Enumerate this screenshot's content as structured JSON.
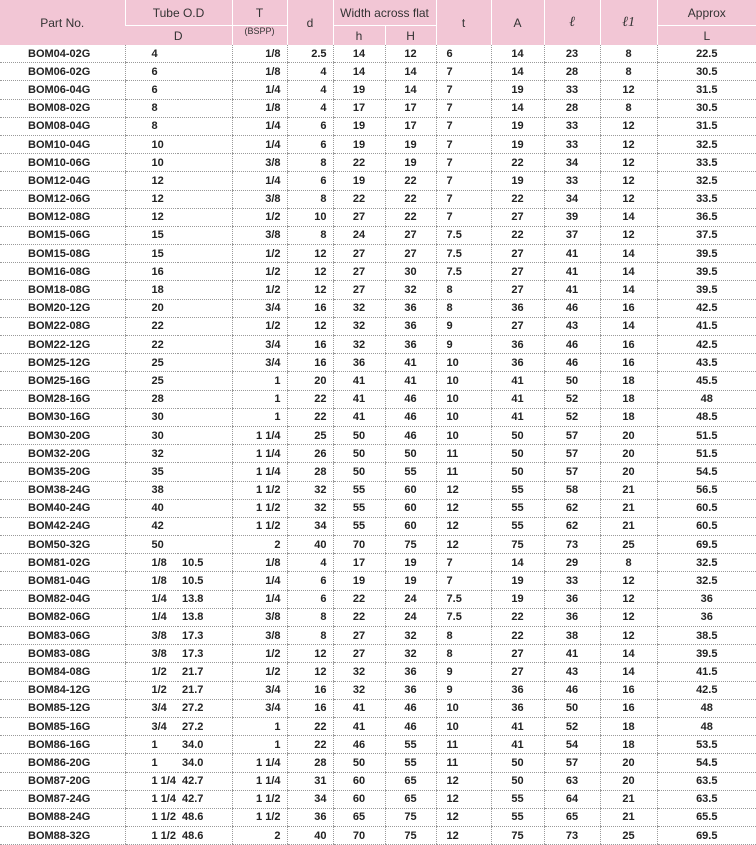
{
  "headers": {
    "part_no": "Part No.",
    "tube_od": "Tube O.D",
    "tube_od_sub": "D",
    "t": "T",
    "t_sub": "(BSPP)",
    "d": "d",
    "waf": "Width across flat",
    "h": "h",
    "H": "H",
    "tt": "t",
    "A": "A",
    "l": "ℓ",
    "l1": "ℓ1",
    "approx": "Approx",
    "L": "L"
  },
  "rows": [
    {
      "part": "BOM04-02G",
      "d1": "4",
      "d2": "",
      "T": "1/8",
      "d": "2.5",
      "h": "14",
      "H": "12",
      "t": "6",
      "A": "14",
      "l": "23",
      "l1": "8",
      "L": "22.5"
    },
    {
      "part": "BOM06-02G",
      "d1": "6",
      "d2": "",
      "T": "1/8",
      "d": "4",
      "h": "14",
      "H": "14",
      "t": "7",
      "A": "14",
      "l": "28",
      "l1": "8",
      "L": "30.5"
    },
    {
      "part": "BOM06-04G",
      "d1": "6",
      "d2": "",
      "T": "1/4",
      "d": "4",
      "h": "19",
      "H": "14",
      "t": "7",
      "A": "19",
      "l": "33",
      "l1": "12",
      "L": "31.5"
    },
    {
      "part": "BOM08-02G",
      "d1": "8",
      "d2": "",
      "T": "1/8",
      "d": "4",
      "h": "17",
      "H": "17",
      "t": "7",
      "A": "14",
      "l": "28",
      "l1": "8",
      "L": "30.5"
    },
    {
      "part": "BOM08-04G",
      "d1": "8",
      "d2": "",
      "T": "1/4",
      "d": "6",
      "h": "19",
      "H": "17",
      "t": "7",
      "A": "19",
      "l": "33",
      "l1": "12",
      "L": "31.5"
    },
    {
      "part": "BOM10-04G",
      "d1": "10",
      "d2": "",
      "T": "1/4",
      "d": "6",
      "h": "19",
      "H": "19",
      "t": "7",
      "A": "19",
      "l": "33",
      "l1": "12",
      "L": "32.5"
    },
    {
      "part": "BOM10-06G",
      "d1": "10",
      "d2": "",
      "T": "3/8",
      "d": "8",
      "h": "22",
      "H": "19",
      "t": "7",
      "A": "22",
      "l": "34",
      "l1": "12",
      "L": "33.5"
    },
    {
      "part": "BOM12-04G",
      "d1": "12",
      "d2": "",
      "T": "1/4",
      "d": "6",
      "h": "19",
      "H": "22",
      "t": "7",
      "A": "19",
      "l": "33",
      "l1": "12",
      "L": "32.5"
    },
    {
      "part": "BOM12-06G",
      "d1": "12",
      "d2": "",
      "T": "3/8",
      "d": "8",
      "h": "22",
      "H": "22",
      "t": "7",
      "A": "22",
      "l": "34",
      "l1": "12",
      "L": "33.5"
    },
    {
      "part": "BOM12-08G",
      "d1": "12",
      "d2": "",
      "T": "1/2",
      "d": "10",
      "h": "27",
      "H": "22",
      "t": "7",
      "A": "27",
      "l": "39",
      "l1": "14",
      "L": "36.5"
    },
    {
      "part": "BOM15-06G",
      "d1": "15",
      "d2": "",
      "T": "3/8",
      "d": "8",
      "h": "24",
      "H": "27",
      "t": "7.5",
      "A": "22",
      "l": "37",
      "l1": "12",
      "L": "37.5"
    },
    {
      "part": "BOM15-08G",
      "d1": "15",
      "d2": "",
      "T": "1/2",
      "d": "12",
      "h": "27",
      "H": "27",
      "t": "7.5",
      "A": "27",
      "l": "41",
      "l1": "14",
      "L": "39.5"
    },
    {
      "part": "BOM16-08G",
      "d1": "16",
      "d2": "",
      "T": "1/2",
      "d": "12",
      "h": "27",
      "H": "30",
      "t": "7.5",
      "A": "27",
      "l": "41",
      "l1": "14",
      "L": "39.5"
    },
    {
      "part": "BOM18-08G",
      "d1": "18",
      "d2": "",
      "T": "1/2",
      "d": "12",
      "h": "27",
      "H": "32",
      "t": "8",
      "A": "27",
      "l": "41",
      "l1": "14",
      "L": "39.5"
    },
    {
      "part": "BOM20-12G",
      "d1": "20",
      "d2": "",
      "T": "3/4",
      "d": "16",
      "h": "32",
      "H": "36",
      "t": "8",
      "A": "36",
      "l": "46",
      "l1": "16",
      "L": "42.5"
    },
    {
      "part": "BOM22-08G",
      "d1": "22",
      "d2": "",
      "T": "1/2",
      "d": "12",
      "h": "32",
      "H": "36",
      "t": "9",
      "A": "27",
      "l": "43",
      "l1": "14",
      "L": "41.5"
    },
    {
      "part": "BOM22-12G",
      "d1": "22",
      "d2": "",
      "T": "3/4",
      "d": "16",
      "h": "32",
      "H": "36",
      "t": "9",
      "A": "36",
      "l": "46",
      "l1": "16",
      "L": "42.5"
    },
    {
      "part": "BOM25-12G",
      "d1": "25",
      "d2": "",
      "T": "3/4",
      "d": "16",
      "h": "36",
      "H": "41",
      "t": "10",
      "A": "36",
      "l": "46",
      "l1": "16",
      "L": "43.5"
    },
    {
      "part": "BOM25-16G",
      "d1": "25",
      "d2": "",
      "T": "1",
      "d": "20",
      "h": "41",
      "H": "41",
      "t": "10",
      "A": "41",
      "l": "50",
      "l1": "18",
      "L": "45.5"
    },
    {
      "part": "BOM28-16G",
      "d1": "28",
      "d2": "",
      "T": "1",
      "d": "22",
      "h": "41",
      "H": "46",
      "t": "10",
      "A": "41",
      "l": "52",
      "l1": "18",
      "L": "48"
    },
    {
      "part": "BOM30-16G",
      "d1": "30",
      "d2": "",
      "T": "1",
      "d": "22",
      "h": "41",
      "H": "46",
      "t": "10",
      "A": "41",
      "l": "52",
      "l1": "18",
      "L": "48.5"
    },
    {
      "part": "BOM30-20G",
      "d1": "30",
      "d2": "",
      "T": "1 1/4",
      "d": "25",
      "h": "50",
      "H": "46",
      "t": "10",
      "A": "50",
      "l": "57",
      "l1": "20",
      "L": "51.5"
    },
    {
      "part": "BOM32-20G",
      "d1": "32",
      "d2": "",
      "T": "1 1/4",
      "d": "26",
      "h": "50",
      "H": "50",
      "t": "11",
      "A": "50",
      "l": "57",
      "l1": "20",
      "L": "51.5"
    },
    {
      "part": "BOM35-20G",
      "d1": "35",
      "d2": "",
      "T": "1 1/4",
      "d": "28",
      "h": "50",
      "H": "55",
      "t": "11",
      "A": "50",
      "l": "57",
      "l1": "20",
      "L": "54.5"
    },
    {
      "part": "BOM38-24G",
      "d1": "38",
      "d2": "",
      "T": "1 1/2",
      "d": "32",
      "h": "55",
      "H": "60",
      "t": "12",
      "A": "55",
      "l": "58",
      "l1": "21",
      "L": "56.5"
    },
    {
      "part": "BOM40-24G",
      "d1": "40",
      "d2": "",
      "T": "1 1/2",
      "d": "32",
      "h": "55",
      "H": "60",
      "t": "12",
      "A": "55",
      "l": "62",
      "l1": "21",
      "L": "60.5"
    },
    {
      "part": "BOM42-24G",
      "d1": "42",
      "d2": "",
      "T": "1 1/2",
      "d": "34",
      "h": "55",
      "H": "60",
      "t": "12",
      "A": "55",
      "l": "62",
      "l1": "21",
      "L": "60.5"
    },
    {
      "part": "BOM50-32G",
      "d1": "50",
      "d2": "",
      "T": "2",
      "d": "40",
      "h": "70",
      "H": "75",
      "t": "12",
      "A": "75",
      "l": "73",
      "l1": "25",
      "L": "69.5"
    },
    {
      "part": "BOM81-02G",
      "d1": "1/8",
      "d2": "10.5",
      "T": "1/8",
      "d": "4",
      "h": "17",
      "H": "19",
      "t": "7",
      "A": "14",
      "l": "29",
      "l1": "8",
      "L": "32.5"
    },
    {
      "part": "BOM81-04G",
      "d1": "1/8",
      "d2": "10.5",
      "T": "1/4",
      "d": "6",
      "h": "19",
      "H": "19",
      "t": "7",
      "A": "19",
      "l": "33",
      "l1": "12",
      "L": "32.5"
    },
    {
      "part": "BOM82-04G",
      "d1": "1/4",
      "d2": "13.8",
      "T": "1/4",
      "d": "6",
      "h": "22",
      "H": "24",
      "t": "7.5",
      "A": "19",
      "l": "36",
      "l1": "12",
      "L": "36"
    },
    {
      "part": "BOM82-06G",
      "d1": "1/4",
      "d2": "13.8",
      "T": "3/8",
      "d": "8",
      "h": "22",
      "H": "24",
      "t": "7.5",
      "A": "22",
      "l": "36",
      "l1": "12",
      "L": "36"
    },
    {
      "part": "BOM83-06G",
      "d1": "3/8",
      "d2": "17.3",
      "T": "3/8",
      "d": "8",
      "h": "27",
      "H": "32",
      "t": "8",
      "A": "22",
      "l": "38",
      "l1": "12",
      "L": "38.5"
    },
    {
      "part": "BOM83-08G",
      "d1": "3/8",
      "d2": "17.3",
      "T": "1/2",
      "d": "12",
      "h": "27",
      "H": "32",
      "t": "8",
      "A": "27",
      "l": "41",
      "l1": "14",
      "L": "39.5"
    },
    {
      "part": "BOM84-08G",
      "d1": "1/2",
      "d2": "21.7",
      "T": "1/2",
      "d": "12",
      "h": "32",
      "H": "36",
      "t": "9",
      "A": "27",
      "l": "43",
      "l1": "14",
      "L": "41.5"
    },
    {
      "part": "BOM84-12G",
      "d1": "1/2",
      "d2": "21.7",
      "T": "3/4",
      "d": "16",
      "h": "32",
      "H": "36",
      "t": "9",
      "A": "36",
      "l": "46",
      "l1": "16",
      "L": "42.5"
    },
    {
      "part": "BOM85-12G",
      "d1": "3/4",
      "d2": "27.2",
      "T": "3/4",
      "d": "16",
      "h": "41",
      "H": "46",
      "t": "10",
      "A": "36",
      "l": "50",
      "l1": "16",
      "L": "48"
    },
    {
      "part": "BOM85-16G",
      "d1": "3/4",
      "d2": "27.2",
      "T": "1",
      "d": "22",
      "h": "41",
      "H": "46",
      "t": "10",
      "A": "41",
      "l": "52",
      "l1": "18",
      "L": "48"
    },
    {
      "part": "BOM86-16G",
      "d1": "1",
      "d2": "34.0",
      "T": "1",
      "d": "22",
      "h": "46",
      "H": "55",
      "t": "11",
      "A": "41",
      "l": "54",
      "l1": "18",
      "L": "53.5"
    },
    {
      "part": "BOM86-20G",
      "d1": "1",
      "d2": "34.0",
      "T": "1 1/4",
      "d": "28",
      "h": "50",
      "H": "55",
      "t": "11",
      "A": "50",
      "l": "57",
      "l1": "20",
      "L": "54.5"
    },
    {
      "part": "BOM87-20G",
      "d1": "1 1/4",
      "d2": "42.7",
      "T": "1 1/4",
      "d": "31",
      "h": "60",
      "H": "65",
      "t": "12",
      "A": "50",
      "l": "63",
      "l1": "20",
      "L": "63.5"
    },
    {
      "part": "BOM87-24G",
      "d1": "1 1/4",
      "d2": "42.7",
      "T": "1 1/2",
      "d": "34",
      "h": "60",
      "H": "65",
      "t": "12",
      "A": "55",
      "l": "64",
      "l1": "21",
      "L": "63.5"
    },
    {
      "part": "BOM88-24G",
      "d1": "1 1/2",
      "d2": "48.6",
      "T": "1 1/2",
      "d": "36",
      "h": "65",
      "H": "75",
      "t": "12",
      "A": "55",
      "l": "65",
      "l1": "21",
      "L": "65.5"
    },
    {
      "part": "BOM88-32G",
      "d1": "1 1/2",
      "d2": "48.6",
      "T": "2",
      "d": "40",
      "h": "70",
      "H": "75",
      "t": "12",
      "A": "75",
      "l": "73",
      "l1": "25",
      "L": "69.5"
    }
  ]
}
